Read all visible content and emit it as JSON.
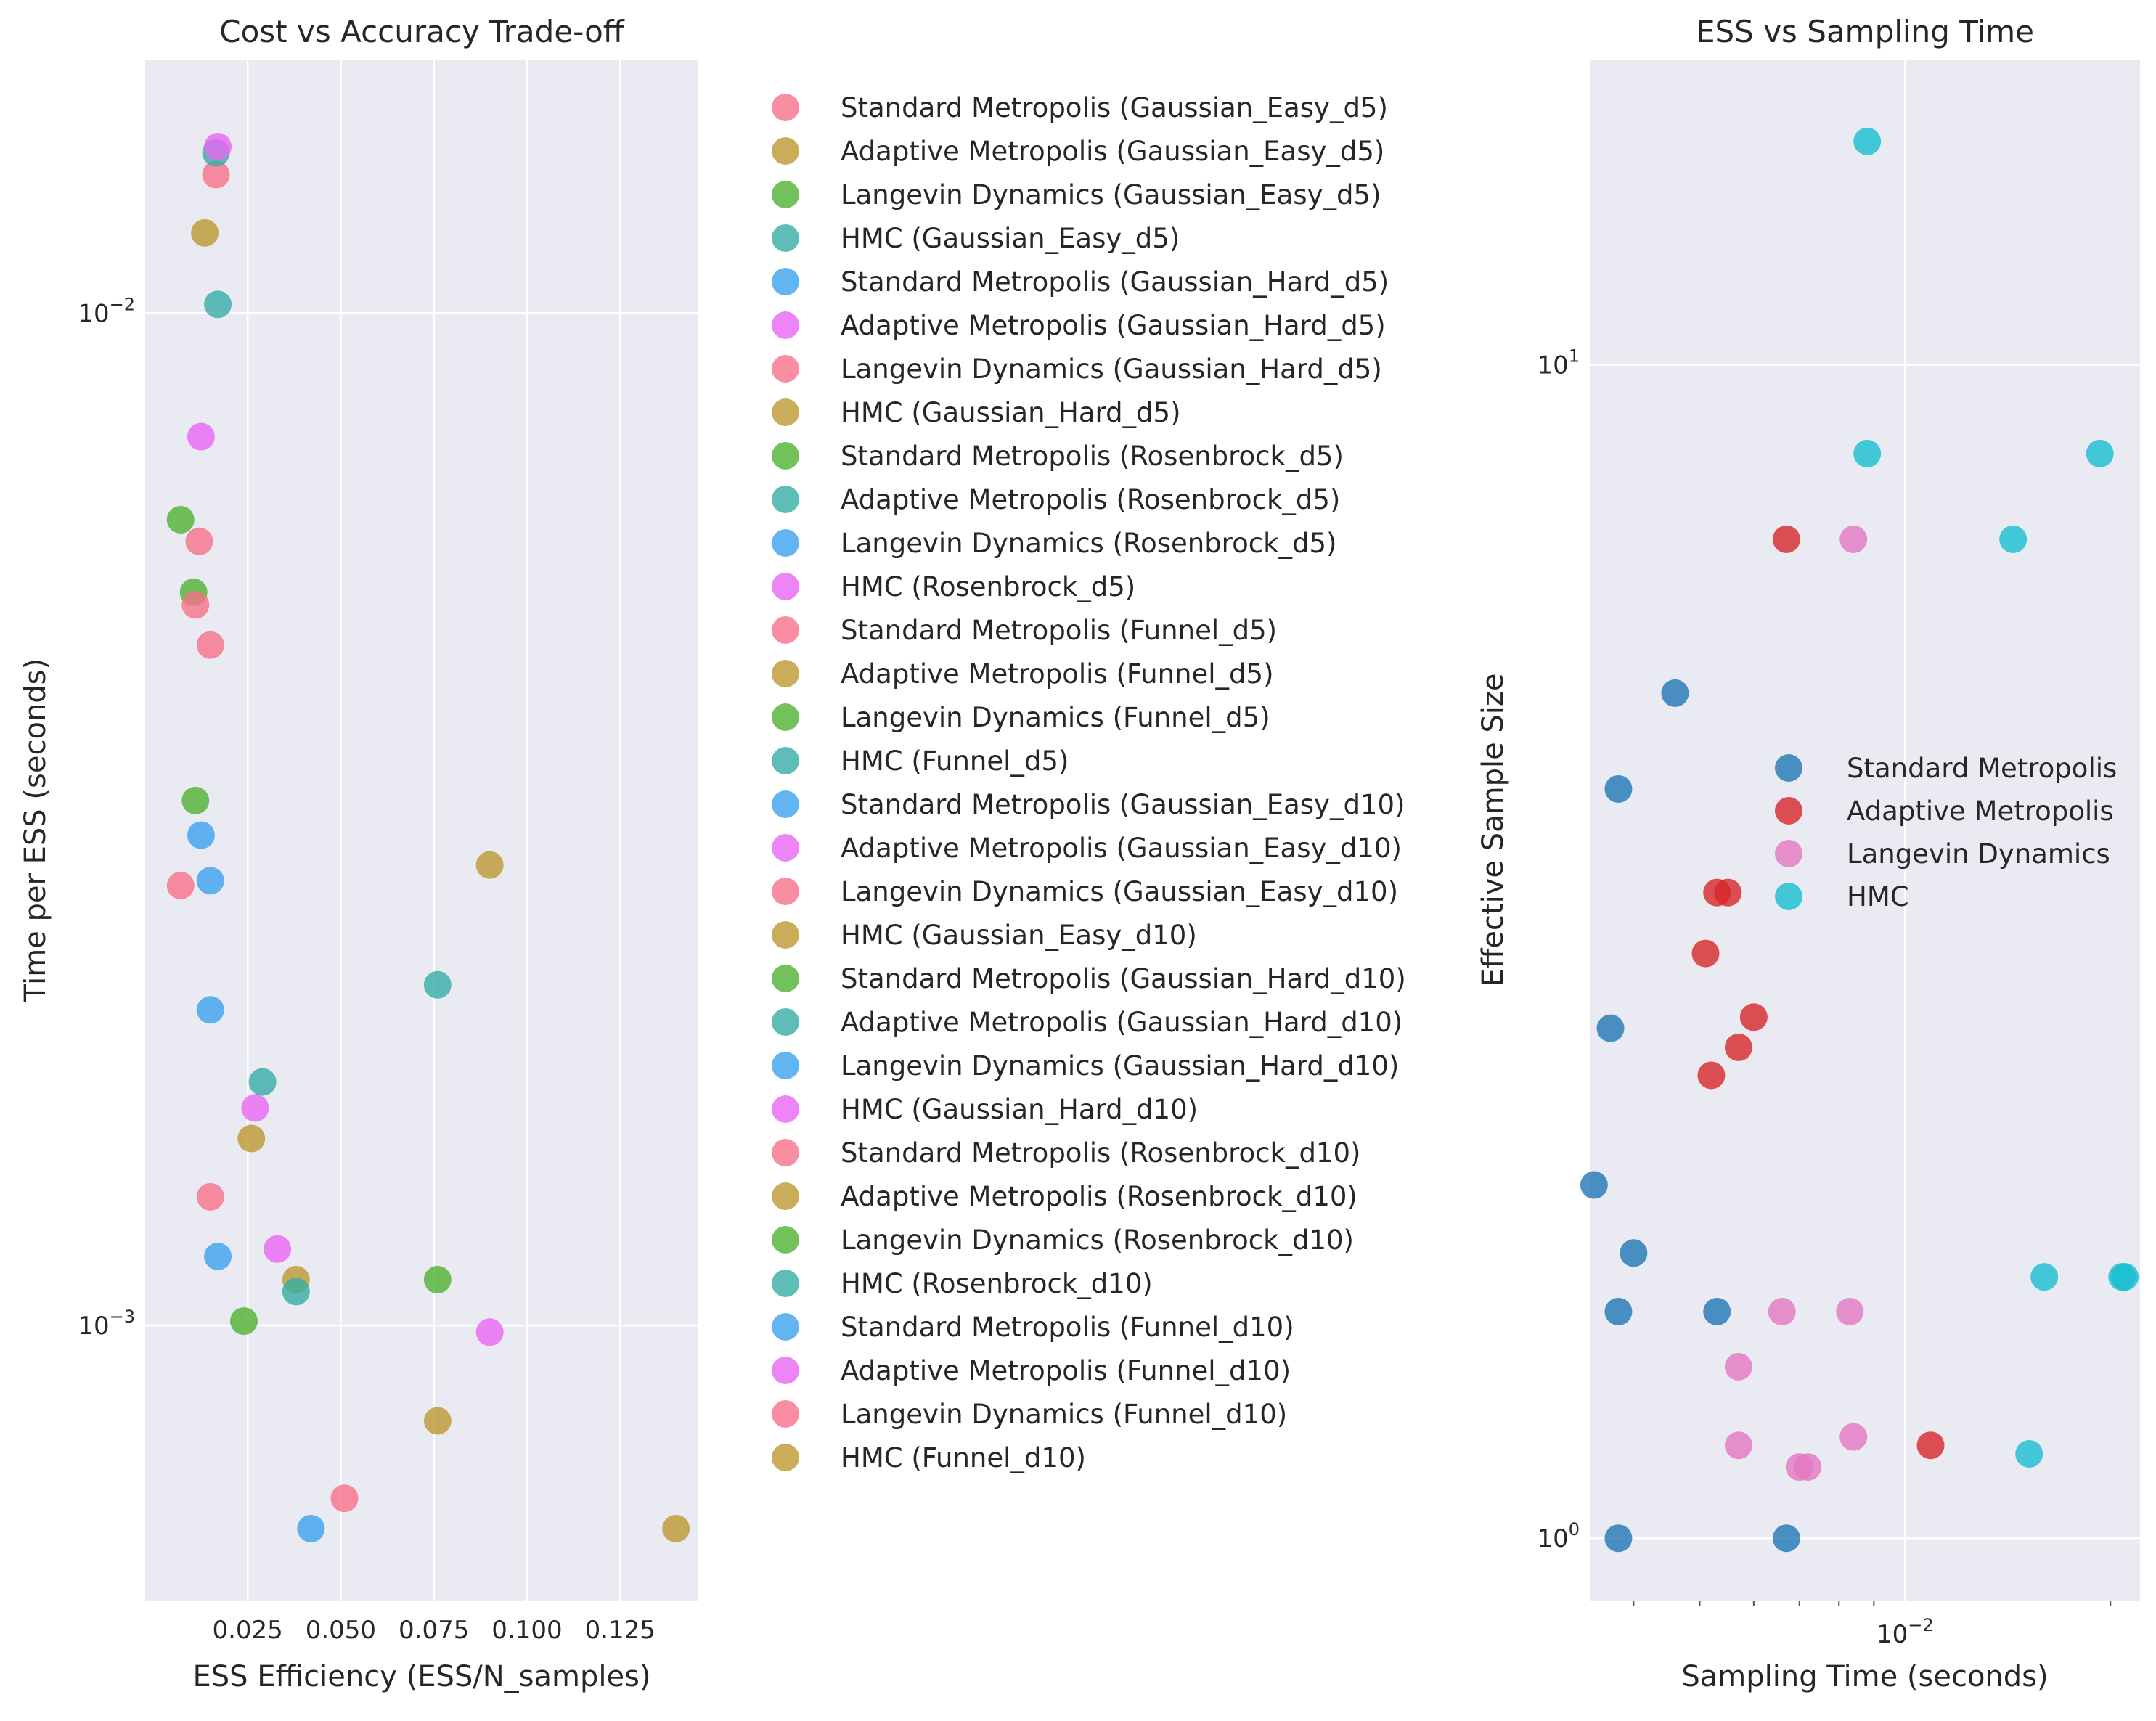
{
  "chart_data": [
    {
      "type": "scatter",
      "title": "Cost vs Accuracy Trade-off",
      "xlabel": "ESS Efficiency (ESS/N_samples)",
      "ylabel": "Time per ESS (seconds)",
      "xlim": [
        -0.0025,
        0.146
      ],
      "ylim": [
        0.000535,
        0.0178
      ],
      "xscale": "linear",
      "yscale": "log",
      "x_ticks": [
        0.025,
        0.05,
        0.075,
        0.1,
        0.125
      ],
      "x_tick_labels": [
        "0.025",
        "0.050",
        "0.075",
        "0.100",
        "0.125"
      ],
      "y_ticks": [
        0.001,
        0.01
      ],
      "y_tick_labels": [
        {
          "base": "10",
          "exp": "−3"
        },
        {
          "base": "10",
          "exp": "−2"
        }
      ],
      "grid": true,
      "legend_position": "outside-right",
      "series": [
        {
          "name": "Standard Metropolis (Gaussian_Easy_d5)",
          "color": "#f77189",
          "points": [
            [
              0.0165,
              0.0137
            ]
          ]
        },
        {
          "name": "Adaptive Metropolis (Gaussian_Easy_d5)",
          "color": "#bb9832",
          "points": [
            [
              0.0135,
              0.012
            ]
          ]
        },
        {
          "name": "Langevin Dynamics (Gaussian_Easy_d5)",
          "color": "#50b131",
          "points": [
            [
              0.007,
              0.00625
            ]
          ]
        },
        {
          "name": "HMC (Gaussian_Easy_d5)",
          "color": "#36ada4",
          "points": [
            [
              0.0165,
              0.0144
            ]
          ]
        },
        {
          "name": "Standard Metropolis (Gaussian_Hard_d5)",
          "color": "#3ba3ec",
          "points": [
            [
              0.015,
              0.00275
            ]
          ]
        },
        {
          "name": "Adaptive Metropolis (Gaussian_Hard_d5)",
          "color": "#e866f4",
          "points": [
            [
              0.017,
              0.0146
            ]
          ]
        },
        {
          "name": "Langevin Dynamics (Gaussian_Hard_d5)",
          "color": "#f77189",
          "points": [
            [
              0.012,
              0.00595
            ],
            [
              0.015,
              0.0047
            ]
          ]
        },
        {
          "name": "HMC (Gaussian_Hard_d5)",
          "color": "#bb9832",
          "points": []
        },
        {
          "name": "Standard Metropolis (Rosenbrock_d5)",
          "color": "#50b131",
          "points": [
            [
              0.0105,
              0.0053
            ]
          ]
        },
        {
          "name": "Adaptive Metropolis (Rosenbrock_d5)",
          "color": "#36ada4",
          "points": [
            [
              0.017,
              0.0102
            ]
          ]
        },
        {
          "name": "Langevin Dynamics (Rosenbrock_d5)",
          "color": "#3ba3ec",
          "points": [
            [
              0.0125,
              0.00305
            ]
          ]
        },
        {
          "name": "HMC (Rosenbrock_d5)",
          "color": "#e866f4",
          "points": [
            [
              0.0125,
              0.00755
            ]
          ]
        },
        {
          "name": "Standard Metropolis (Funnel_d5)",
          "color": "#f77189",
          "points": [
            [
              0.007,
              0.00272
            ]
          ]
        },
        {
          "name": "Adaptive Metropolis (Funnel_d5)",
          "color": "#bb9832",
          "points": [
            [
              0.09,
              0.00285
            ]
          ]
        },
        {
          "name": "Langevin Dynamics (Funnel_d5)",
          "color": "#50b131",
          "points": [
            [
              0.011,
              0.0033
            ]
          ]
        },
        {
          "name": "HMC (Funnel_d5)",
          "color": "#36ada4",
          "points": []
        },
        {
          "name": "Standard Metropolis (Gaussian_Easy_d10)",
          "color": "#3ba3ec",
          "points": [
            [
              0.015,
              0.00205
            ]
          ]
        },
        {
          "name": "Adaptive Metropolis (Gaussian_Easy_d10)",
          "color": "#e866f4",
          "points": []
        },
        {
          "name": "Langevin Dynamics (Gaussian_Easy_d10)",
          "color": "#f77189",
          "points": [
            [
              0.011,
              0.00515
            ]
          ]
        },
        {
          "name": "HMC (Gaussian_Easy_d10)",
          "color": "#bb9832",
          "points": [
            [
              0.038,
              0.00111
            ]
          ]
        },
        {
          "name": "Standard Metropolis (Gaussian_Hard_d10)",
          "color": "#50b131",
          "points": [
            [
              0.024,
              0.00101
            ]
          ]
        },
        {
          "name": "Adaptive Metropolis (Gaussian_Hard_d10)",
          "color": "#36ada4",
          "points": [
            [
              0.076,
              0.00217
            ]
          ]
        },
        {
          "name": "Langevin Dynamics (Gaussian_Hard_d10)",
          "color": "#3ba3ec",
          "points": [
            [
              0.017,
              0.00117
            ]
          ]
        },
        {
          "name": "HMC (Gaussian_Hard_d10)",
          "color": "#e866f4",
          "points": [
            [
              0.027,
              0.00164
            ]
          ]
        },
        {
          "name": "Standard Metropolis (Rosenbrock_d10)",
          "color": "#f77189",
          "points": [
            [
              0.015,
              0.00134
            ]
          ]
        },
        {
          "name": "Adaptive Metropolis (Rosenbrock_d10)",
          "color": "#bb9832",
          "points": [
            [
              0.026,
              0.00153
            ],
            [
              0.076,
              0.000805
            ],
            [
              0.14,
              0.00063
            ]
          ]
        },
        {
          "name": "Langevin Dynamics (Rosenbrock_d10)",
          "color": "#50b131",
          "points": [
            [
              0.076,
              0.00111
            ]
          ]
        },
        {
          "name": "HMC (Rosenbrock_d10)",
          "color": "#36ada4",
          "points": [
            [
              0.029,
              0.00174
            ],
            [
              0.038,
              0.00108
            ]
          ]
        },
        {
          "name": "Standard Metropolis (Funnel_d10)",
          "color": "#3ba3ec",
          "points": [
            [
              0.042,
              0.00063
            ]
          ]
        },
        {
          "name": "Adaptive Metropolis (Funnel_d10)",
          "color": "#e866f4",
          "points": [
            [
              0.033,
              0.00119
            ],
            [
              0.09,
              0.000985
            ]
          ]
        },
        {
          "name": "Langevin Dynamics (Funnel_d10)",
          "color": "#f77189",
          "points": [
            [
              0.051,
              0.000675
            ]
          ]
        },
        {
          "name": "HMC (Funnel_d10)",
          "color": "#bb9832",
          "points": []
        }
      ]
    },
    {
      "type": "scatter",
      "title": "ESS vs Sampling Time",
      "xlabel": "Sampling Time (seconds)",
      "ylabel": "Effective Sample Size",
      "xlim": [
        0.00345,
        0.0221
      ],
      "ylim": [
        0.885,
        18.2
      ],
      "xscale": "log",
      "yscale": "log",
      "x_ticks": [
        0.01
      ],
      "x_tick_labels": [
        {
          "base": "10",
          "exp": "−2"
        }
      ],
      "y_ticks": [
        1,
        10
      ],
      "y_tick_labels": [
        {
          "base": "10",
          "exp": "0"
        },
        {
          "base": "10",
          "exp": "1"
        }
      ],
      "grid": true,
      "legend_position": "center-right",
      "series": [
        {
          "name": "Standard Metropolis",
          "color": "#1f77b4",
          "points": [
            [
              0.0038,
              1.0
            ],
            [
              0.0067,
              1.0
            ],
            [
              0.0035,
              2.0
            ],
            [
              0.004,
              1.75
            ],
            [
              0.0038,
              1.56
            ],
            [
              0.0037,
              2.72
            ],
            [
              0.0038,
              4.35
            ],
            [
              0.0046,
              5.25
            ],
            [
              0.0053,
              1.56
            ]
          ]
        },
        {
          "name": "Adaptive Metropolis",
          "color": "#d62728",
          "points": [
            [
              0.0067,
              7.1
            ],
            [
              0.0053,
              3.55
            ],
            [
              0.0055,
              3.55
            ],
            [
              0.0051,
              3.15
            ],
            [
              0.006,
              2.78
            ],
            [
              0.0057,
              2.62
            ],
            [
              0.0052,
              2.48
            ],
            [
              0.0109,
              1.2
            ]
          ]
        },
        {
          "name": "Langevin Dynamics",
          "color": "#e377c2",
          "points": [
            [
              0.0084,
              7.1
            ],
            [
              0.0066,
              1.56
            ],
            [
              0.0083,
              1.56
            ],
            [
              0.0057,
              1.4
            ],
            [
              0.0057,
              1.2
            ],
            [
              0.007,
              1.15
            ],
            [
              0.0072,
              1.15
            ],
            [
              0.0084,
              1.22
            ]
          ]
        },
        {
          "name": "HMC",
          "color": "#17becf",
          "points": [
            [
              0.0088,
              15.5
            ],
            [
              0.0088,
              8.4
            ],
            [
              0.0193,
              8.4
            ],
            [
              0.0144,
              7.1
            ],
            [
              0.016,
              1.67
            ],
            [
              0.0208,
              1.67
            ],
            [
              0.021,
              1.67
            ],
            [
              0.0152,
              1.18
            ]
          ]
        }
      ]
    }
  ]
}
